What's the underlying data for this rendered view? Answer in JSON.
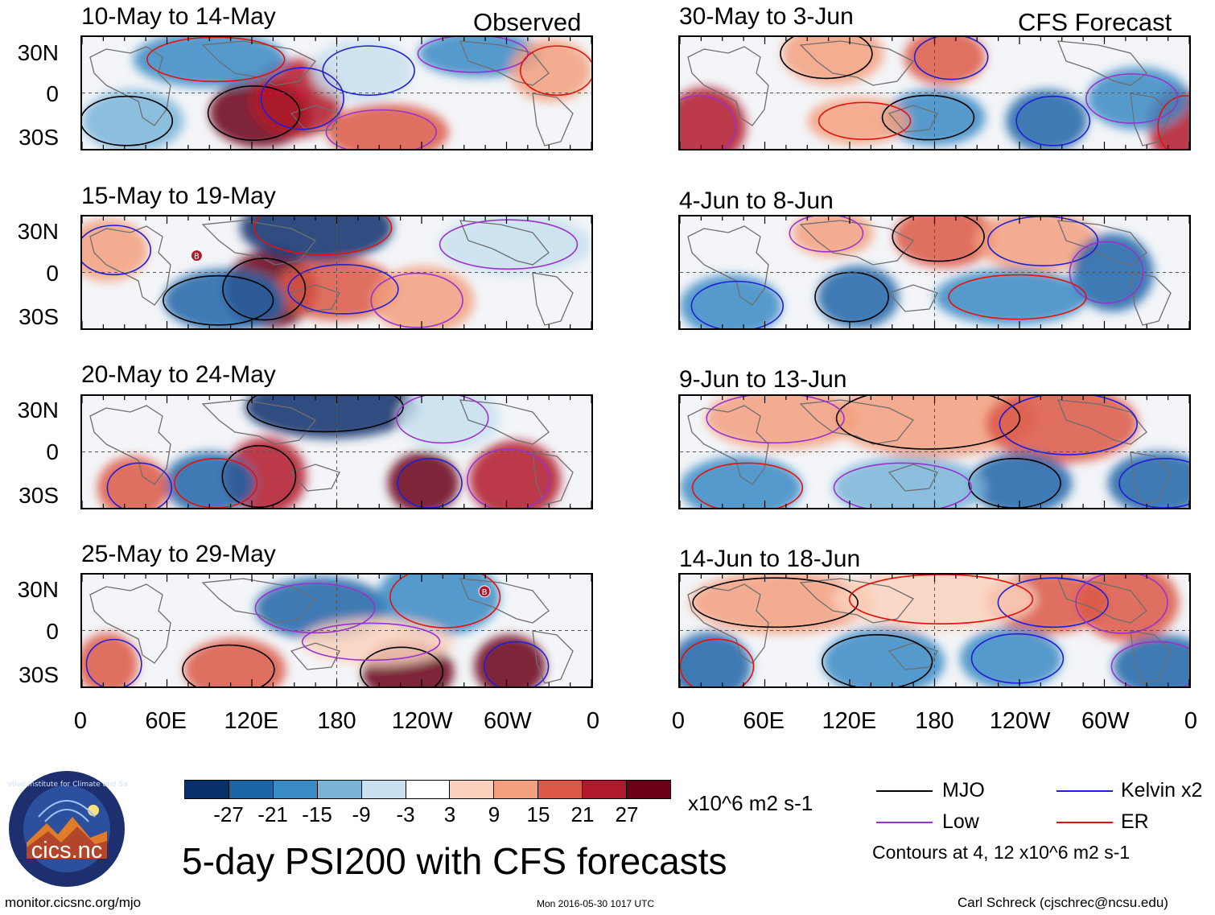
{
  "header": {
    "observed_label": "Observed",
    "forecast_label": "CFS Forecast"
  },
  "panels": {
    "observed": [
      {
        "title": "10-May to 14-May"
      },
      {
        "title": "15-May to 19-May"
      },
      {
        "title": "20-May to 24-May"
      },
      {
        "title": "25-May to 29-May"
      }
    ],
    "forecast": [
      {
        "title": "30-May to 3-Jun"
      },
      {
        "title": "4-Jun to 8-Jun"
      },
      {
        "title": "9-Jun to 13-Jun"
      },
      {
        "title": "14-Jun to 18-Jun"
      }
    ],
    "marker_letter": "B"
  },
  "axes": {
    "lat_labels": [
      "30N",
      "0",
      "30S"
    ],
    "lon_labels": [
      "0",
      "60E",
      "120E",
      "180",
      "120W",
      "60W",
      "0"
    ]
  },
  "colorbar": {
    "colors": [
      "#08306b",
      "#1c64a8",
      "#3a8ac4",
      "#7ab4d9",
      "#c8e0ef",
      "#ffffff",
      "#fbd2bd",
      "#f3a07f",
      "#dc5746",
      "#b2182b",
      "#6a0016"
    ],
    "tick_labels": [
      "-27",
      "-21",
      "-15",
      "-9",
      "-3",
      "3",
      "9",
      "15",
      "21",
      "27"
    ],
    "units": "x10^6 m2 s-1"
  },
  "legend": {
    "items": [
      {
        "label": "MJO",
        "color": "#000000"
      },
      {
        "label": "Kelvin x2",
        "color": "#1f1fd6"
      },
      {
        "label": "Low",
        "color": "#9a32cd"
      },
      {
        "label": "ER",
        "color": "#e3120b"
      }
    ],
    "contours_note": "Contours at 4, 12 x10^6 m2 s-1"
  },
  "footer": {
    "main_title": "5-day PSI200 with CFS forecasts",
    "url": "monitor.cicsnc.org/mjo",
    "timestamp": "Mon 2016-05-30 1017 UTC",
    "author": "Carl Schreck (cjschrec@ncsu.edu)",
    "logo_text": "cics.nc",
    "logo_ring_text": "Cooperative Institute for Climate and Satellites"
  }
}
